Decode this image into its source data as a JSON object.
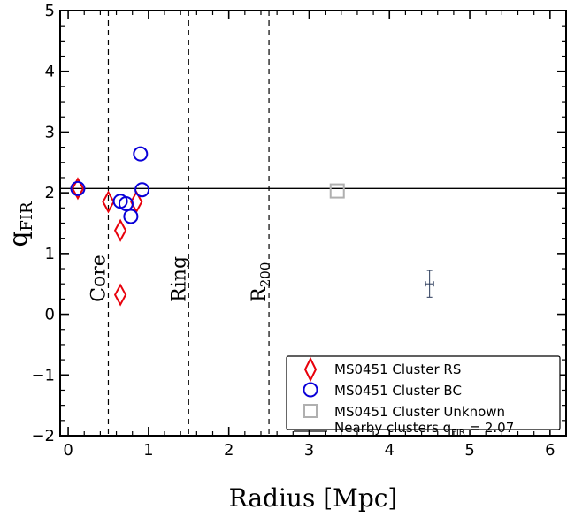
{
  "chart_data": {
    "type": "scatter",
    "xlabel": "Radius [Mpc]",
    "ylabel": "q",
    "ylabel_sub": "FIR",
    "xlim": [
      -0.1,
      6.2
    ],
    "ylim": [
      -2,
      5
    ],
    "xticks": [
      0,
      1,
      2,
      3,
      4,
      5,
      6
    ],
    "yticks": [
      -2,
      -1,
      0,
      1,
      2,
      3,
      4,
      5
    ],
    "xtick_labels": [
      "0",
      "1",
      "2",
      "3",
      "4",
      "5",
      "6"
    ],
    "ytick_labels": [
      "−2",
      "−1",
      "0",
      "1",
      "2",
      "3",
      "4",
      "5"
    ],
    "series": [
      {
        "name": "MS0451 Cluster RS",
        "marker": "diamond",
        "color": "#e8000b",
        "points": [
          [
            0.12,
            2.07
          ],
          [
            0.5,
            1.85
          ],
          [
            0.65,
            1.38
          ],
          [
            0.65,
            0.32
          ],
          [
            0.85,
            1.85
          ]
        ]
      },
      {
        "name": "MS0451 Cluster BC",
        "marker": "circle",
        "color": "#0a00d8",
        "points": [
          [
            0.12,
            2.07
          ],
          [
            0.65,
            1.86
          ],
          [
            0.72,
            1.82
          ],
          [
            0.78,
            1.61
          ],
          [
            0.9,
            2.64
          ],
          [
            0.92,
            2.05
          ]
        ]
      },
      {
        "name": "MS0451 Cluster Unknown",
        "marker": "square",
        "color": "#b0b0b0",
        "points": [
          [
            3.35,
            2.03
          ]
        ]
      }
    ],
    "reference_line": {
      "label": "Nearby clusters q",
      "label_sub": "FIR",
      "label_tail": " = 2.07",
      "y": 2.07,
      "color": "#000000"
    },
    "vertical_lines": [
      {
        "x": 0.5,
        "label": "Core"
      },
      {
        "x": 1.5,
        "label": "Ring"
      },
      {
        "x": 2.5,
        "label": "R",
        "label_sub": "200"
      }
    ],
    "error_bar": {
      "x": 4.5,
      "y": 0.5,
      "xerr": 0.05,
      "yerr": 0.22,
      "color": "#2a3a5a"
    },
    "legend_position": "bottom-right"
  }
}
